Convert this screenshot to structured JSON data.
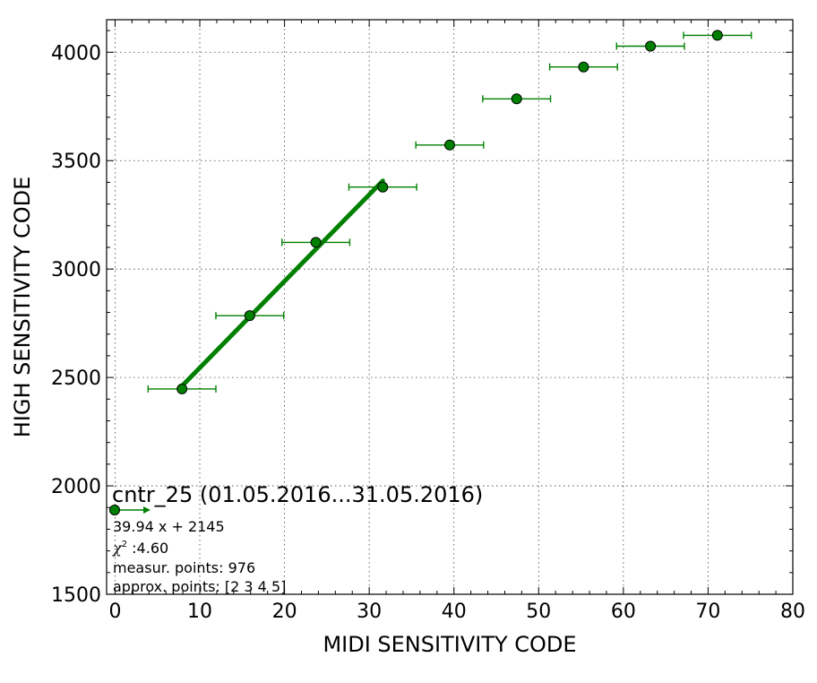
{
  "chart_data": {
    "type": "scatter",
    "xlabel": "MIDI SENSITIVITY CODE",
    "ylabel": "HIGH SENSITIVITY CODE",
    "xlim": [
      -1,
      80
    ],
    "ylim": [
      1500,
      4150
    ],
    "xticks": [
      "0",
      "10",
      "20",
      "30",
      "40",
      "50",
      "60",
      "70",
      "80"
    ],
    "yticks": [
      "1500",
      "2000",
      "2500",
      "3000",
      "3500",
      "4000"
    ],
    "grid": true,
    "color": "#008000",
    "points": [
      {
        "x": 7.9,
        "y": 2447,
        "xerr": 4.0
      },
      {
        "x": 15.9,
        "y": 2785,
        "xerr": 4.0
      },
      {
        "x": 23.7,
        "y": 3123,
        "xerr": 4.0
      },
      {
        "x": 31.6,
        "y": 3378,
        "xerr": 4.0
      },
      {
        "x": 39.5,
        "y": 3572,
        "xerr": 4.0
      },
      {
        "x": 47.4,
        "y": 3785,
        "xerr": 4.0
      },
      {
        "x": 55.3,
        "y": 3932,
        "xerr": 4.0
      },
      {
        "x": 63.2,
        "y": 4028,
        "xerr": 4.0
      },
      {
        "x": 71.1,
        "y": 4078,
        "xerr": 4.0
      }
    ],
    "fit": {
      "slope": 39.94,
      "intercept": 2145,
      "x_range": [
        7.9,
        31.6
      ]
    },
    "annotation": {
      "title": "cntr_25 (01.05.2016...31.05.2016)",
      "equation": "39.94 x + 2145",
      "chi2_symbol": "χ",
      "chi2_exp": "2",
      "chi2_value": " :4.60",
      "measur_points": "measur. points: 976",
      "approx_points": "approx. points: [2 3 4 5]"
    }
  }
}
